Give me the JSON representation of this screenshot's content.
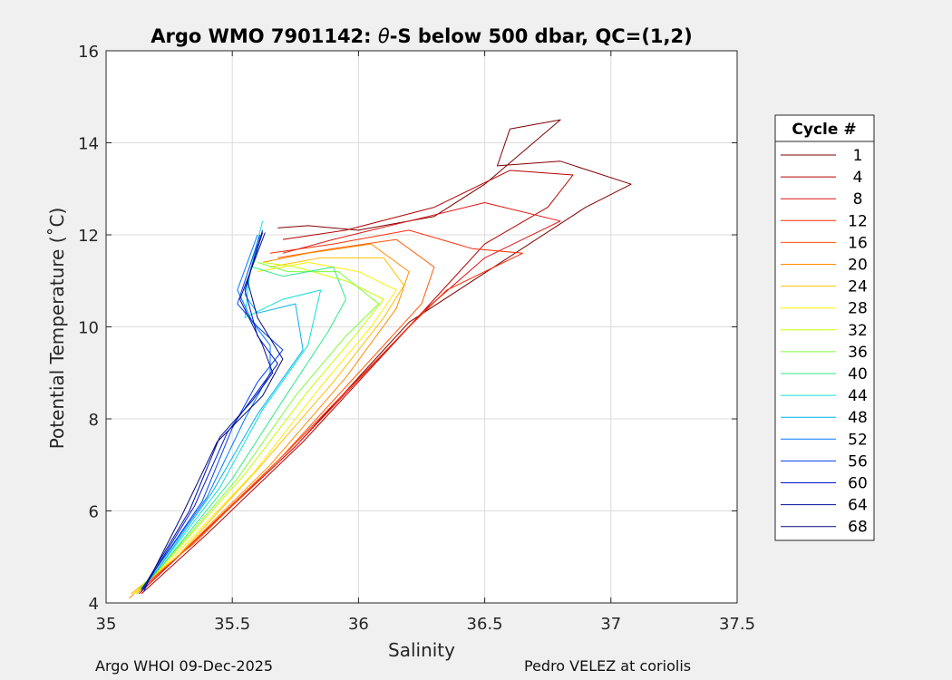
{
  "chart_data": {
    "type": "line",
    "title_prefix": "Argo WMO 7901142: ",
    "title_symbol": "θ",
    "title_suffix": "-S below 500 dbar,  QC=(1,2)",
    "xlabel": "Salinity",
    "ylabel": "Potential Temperature (˚C)",
    "xlim": [
      35,
      37.5
    ],
    "ylim": [
      4,
      16
    ],
    "xticks": [
      35,
      35.5,
      36,
      36.5,
      37,
      37.5
    ],
    "xtick_labels": [
      "35",
      "35.5",
      "36",
      "36.5",
      "37",
      "37.5"
    ],
    "yticks": [
      4,
      6,
      8,
      10,
      12,
      14,
      16
    ],
    "ytick_labels": [
      "4",
      "6",
      "8",
      "10",
      "12",
      "14",
      "16"
    ],
    "grid": true,
    "legend": {
      "title": "Cycle #",
      "position": "outside-right",
      "entries": [
        "1",
        "4",
        "8",
        "12",
        "16",
        "20",
        "24",
        "28",
        "32",
        "36",
        "40",
        "44",
        "48",
        "52",
        "56",
        "60",
        "64",
        "68"
      ],
      "colors": [
        "#7f0000",
        "#b50000",
        "#e01414",
        "#ff2a00",
        "#ff5500",
        "#ff8c00",
        "#ffc000",
        "#ffee00",
        "#c8ff00",
        "#7cff3a",
        "#2eea8a",
        "#11e0d8",
        "#00b0f0",
        "#0078ff",
        "#0040e8",
        "#0018c8",
        "#00109a",
        "#000a7a"
      ]
    },
    "series": [
      {
        "name": "1",
        "points": [
          [
            35.68,
            12.15
          ],
          [
            35.8,
            12.2
          ],
          [
            36.0,
            12.1
          ],
          [
            36.3,
            12.4
          ],
          [
            36.5,
            13.1
          ],
          [
            36.8,
            14.5
          ],
          [
            36.6,
            14.3
          ],
          [
            36.55,
            13.5
          ],
          [
            36.8,
            13.6
          ],
          [
            37.08,
            13.1
          ],
          [
            36.9,
            12.6
          ],
          [
            36.2,
            10.1
          ],
          [
            35.75,
            7.4
          ],
          [
            35.4,
            5.6
          ],
          [
            35.13,
            4.2
          ]
        ]
      },
      {
        "name": "4",
        "points": [
          [
            35.7,
            11.9
          ],
          [
            35.95,
            12.1
          ],
          [
            36.3,
            12.6
          ],
          [
            36.6,
            13.4
          ],
          [
            36.85,
            13.3
          ],
          [
            36.75,
            12.6
          ],
          [
            36.5,
            11.8
          ],
          [
            36.2,
            10.0
          ],
          [
            35.78,
            7.5
          ],
          [
            35.4,
            5.5
          ],
          [
            35.14,
            4.2
          ]
        ]
      },
      {
        "name": "8",
        "points": [
          [
            35.7,
            11.6
          ],
          [
            35.9,
            11.9
          ],
          [
            36.2,
            12.3
          ],
          [
            36.5,
            12.7
          ],
          [
            36.8,
            12.3
          ],
          [
            36.5,
            11.5
          ],
          [
            36.25,
            10.3
          ],
          [
            35.75,
            7.4
          ],
          [
            35.38,
            5.5
          ],
          [
            35.13,
            4.2
          ]
        ]
      },
      {
        "name": "12",
        "points": [
          [
            35.65,
            11.6
          ],
          [
            35.9,
            11.8
          ],
          [
            36.2,
            12.1
          ],
          [
            36.45,
            11.7
          ],
          [
            36.65,
            11.6
          ],
          [
            36.35,
            10.8
          ],
          [
            36.2,
            10.0
          ],
          [
            35.72,
            7.3
          ],
          [
            35.36,
            5.4
          ],
          [
            35.12,
            4.2
          ]
        ]
      },
      {
        "name": "16",
        "points": [
          [
            35.68,
            11.5
          ],
          [
            35.9,
            11.7
          ],
          [
            36.15,
            11.9
          ],
          [
            36.3,
            11.3
          ],
          [
            36.25,
            10.5
          ],
          [
            36.0,
            9.0
          ],
          [
            35.7,
            7.2
          ],
          [
            35.35,
            5.3
          ],
          [
            35.1,
            4.2
          ]
        ]
      },
      {
        "name": "20",
        "points": [
          [
            35.62,
            11.4
          ],
          [
            35.8,
            11.6
          ],
          [
            36.05,
            11.8
          ],
          [
            36.2,
            11.2
          ],
          [
            36.15,
            10.4
          ],
          [
            35.95,
            8.9
          ],
          [
            35.65,
            7.0
          ],
          [
            35.3,
            5.1
          ],
          [
            35.09,
            4.1
          ]
        ]
      },
      {
        "name": "24",
        "points": [
          [
            35.65,
            11.3
          ],
          [
            35.85,
            11.5
          ],
          [
            36.1,
            11.5
          ],
          [
            36.18,
            10.9
          ],
          [
            36.1,
            10.2
          ],
          [
            35.9,
            8.8
          ],
          [
            35.6,
            6.9
          ],
          [
            35.28,
            5.0
          ],
          [
            35.1,
            4.2
          ]
        ]
      },
      {
        "name": "28",
        "points": [
          [
            35.6,
            11.2
          ],
          [
            35.8,
            11.4
          ],
          [
            36.0,
            11.2
          ],
          [
            36.15,
            10.8
          ],
          [
            36.05,
            10.0
          ],
          [
            35.85,
            8.7
          ],
          [
            35.58,
            6.8
          ],
          [
            35.25,
            4.9
          ],
          [
            35.11,
            4.2
          ]
        ]
      },
      {
        "name": "32",
        "points": [
          [
            35.62,
            11.4
          ],
          [
            35.75,
            11.3
          ],
          [
            35.95,
            11.0
          ],
          [
            36.1,
            10.6
          ],
          [
            36.0,
            9.9
          ],
          [
            35.8,
            8.6
          ],
          [
            35.55,
            6.8
          ],
          [
            35.24,
            4.9
          ],
          [
            35.12,
            4.2
          ]
        ]
      },
      {
        "name": "36",
        "points": [
          [
            35.6,
            11.4
          ],
          [
            35.72,
            11.2
          ],
          [
            35.92,
            11.2
          ],
          [
            36.08,
            10.5
          ],
          [
            35.95,
            9.8
          ],
          [
            35.75,
            8.5
          ],
          [
            35.52,
            6.7
          ],
          [
            35.22,
            4.8
          ],
          [
            35.13,
            4.3
          ]
        ]
      },
      {
        "name": "40",
        "points": [
          [
            35.58,
            11.3
          ],
          [
            35.7,
            11.1
          ],
          [
            35.9,
            11.3
          ],
          [
            35.95,
            10.6
          ],
          [
            35.88,
            9.9
          ],
          [
            35.7,
            8.4
          ],
          [
            35.5,
            6.7
          ],
          [
            35.22,
            4.8
          ],
          [
            35.14,
            4.3
          ]
        ]
      },
      {
        "name": "44",
        "points": [
          [
            35.62,
            12.3
          ],
          [
            35.57,
            11.2
          ],
          [
            35.55,
            10.2
          ],
          [
            35.7,
            10.6
          ],
          [
            35.85,
            10.8
          ],
          [
            35.8,
            9.6
          ],
          [
            35.62,
            8.2
          ],
          [
            35.45,
            6.5
          ],
          [
            35.2,
            4.7
          ],
          [
            35.14,
            4.3
          ]
        ]
      },
      {
        "name": "48",
        "points": [
          [
            35.6,
            11.8
          ],
          [
            35.55,
            10.7
          ],
          [
            35.6,
            10.3
          ],
          [
            35.75,
            10.5
          ],
          [
            35.78,
            9.5
          ],
          [
            35.6,
            8.1
          ],
          [
            35.42,
            6.4
          ],
          [
            35.2,
            4.7
          ],
          [
            35.14,
            4.3
          ]
        ]
      },
      {
        "name": "52",
        "points": [
          [
            35.6,
            12.0
          ],
          [
            35.52,
            10.8
          ],
          [
            35.58,
            10.1
          ],
          [
            35.65,
            9.6
          ],
          [
            35.65,
            9.0
          ],
          [
            35.55,
            8.0
          ],
          [
            35.4,
            6.3
          ],
          [
            35.18,
            4.6
          ],
          [
            35.14,
            4.3
          ]
        ]
      },
      {
        "name": "56",
        "points": [
          [
            35.61,
            12.0
          ],
          [
            35.52,
            10.5
          ],
          [
            35.6,
            10.0
          ],
          [
            35.7,
            9.5
          ],
          [
            35.6,
            8.8
          ],
          [
            35.5,
            7.8
          ],
          [
            35.38,
            6.2
          ],
          [
            35.18,
            4.6
          ],
          [
            35.15,
            4.3
          ]
        ]
      },
      {
        "name": "60",
        "points": [
          [
            35.62,
            12.1
          ],
          [
            35.55,
            10.8
          ],
          [
            35.6,
            9.8
          ],
          [
            35.68,
            9.2
          ],
          [
            35.6,
            8.6
          ],
          [
            35.48,
            7.7
          ],
          [
            35.35,
            6.1
          ],
          [
            35.17,
            4.5
          ],
          [
            35.15,
            4.25
          ]
        ]
      },
      {
        "name": "64",
        "points": [
          [
            35.63,
            12.05
          ],
          [
            35.53,
            10.6
          ],
          [
            35.62,
            9.6
          ],
          [
            35.66,
            9.0
          ],
          [
            35.58,
            8.4
          ],
          [
            35.45,
            7.6
          ],
          [
            35.33,
            6.0
          ],
          [
            35.16,
            4.45
          ],
          [
            35.14,
            4.3
          ]
        ]
      },
      {
        "name": "68",
        "points": [
          [
            35.62,
            12.05
          ],
          [
            35.56,
            11.0
          ],
          [
            35.6,
            10.2
          ],
          [
            35.7,
            9.3
          ],
          [
            35.62,
            8.5
          ],
          [
            35.44,
            7.5
          ],
          [
            35.3,
            5.9
          ],
          [
            35.16,
            4.4
          ],
          [
            35.14,
            4.25
          ]
        ]
      }
    ]
  },
  "footer": {
    "left": "Argo WHOI 09-Dec-2025",
    "right": "Pedro VELEZ at coriolis"
  }
}
